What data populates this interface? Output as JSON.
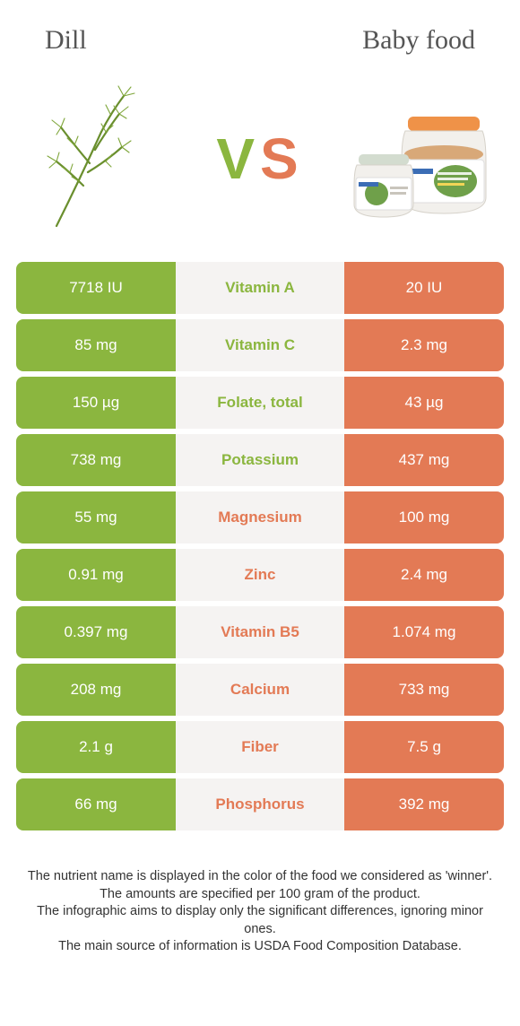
{
  "colors": {
    "green": "#8bb63f",
    "orange": "#e37a55",
    "mid_bg": "#f5f3f2",
    "header_text": "#555555",
    "footer_text": "#333333"
  },
  "header": {
    "left": "Dill",
    "right": "Baby food"
  },
  "vs": {
    "v": "V",
    "s": "S"
  },
  "rows": [
    {
      "left": "7718 IU",
      "mid": "Vitamin A",
      "right": "20 IU",
      "winner": "left"
    },
    {
      "left": "85 mg",
      "mid": "Vitamin C",
      "right": "2.3 mg",
      "winner": "left"
    },
    {
      "left": "150 µg",
      "mid": "Folate, total",
      "right": "43 µg",
      "winner": "left"
    },
    {
      "left": "738 mg",
      "mid": "Potassium",
      "right": "437 mg",
      "winner": "left"
    },
    {
      "left": "55 mg",
      "mid": "Magnesium",
      "right": "100 mg",
      "winner": "right"
    },
    {
      "left": "0.91 mg",
      "mid": "Zinc",
      "right": "2.4 mg",
      "winner": "right"
    },
    {
      "left": "0.397 mg",
      "mid": "Vitamin B5",
      "right": "1.074 mg",
      "winner": "right"
    },
    {
      "left": "208 mg",
      "mid": "Calcium",
      "right": "733 mg",
      "winner": "right"
    },
    {
      "left": "2.1 g",
      "mid": "Fiber",
      "right": "7.5 g",
      "winner": "right"
    },
    {
      "left": "66 mg",
      "mid": "Phosphorus",
      "right": "392 mg",
      "winner": "right"
    }
  ],
  "footer": {
    "line1": "The nutrient name is displayed in the color of the food we considered as 'winner'.",
    "line2": "The amounts are specified per 100 gram of the product.",
    "line3": "The infographic aims to display only the significant differences, ignoring minor ones.",
    "line4": "The main source of information is USDA Food Composition Database."
  }
}
